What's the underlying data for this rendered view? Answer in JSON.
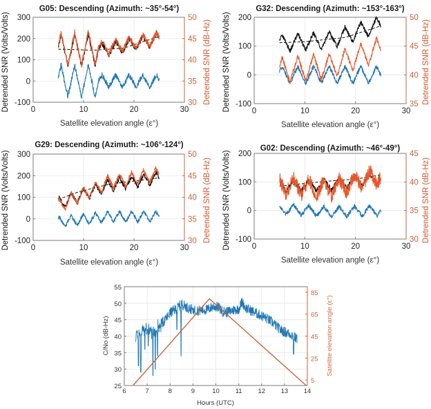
{
  "colors": {
    "blue": "#1f77b4",
    "orange": "#e8572a",
    "black": "#111111",
    "elev": "#c8653c",
    "grid": "#e6e6e6",
    "axis": "#7a7a7a",
    "right_axis": "#c8643c"
  },
  "chart_data": [
    {
      "type": "line",
      "id": "g05",
      "title": "G05: Descending (Azimuth: ~35°-54°)",
      "xlabel": "Satellite elevation angle (ε°)",
      "ylabel": "Detrended SNR (Volts/Volts)",
      "ylabel_right": "Detrended SNR (dB-Hz)",
      "xlim": [
        0,
        30
      ],
      "ylim": [
        -100,
        300
      ],
      "ylim_right": [
        30,
        50
      ],
      "xticks": [
        0,
        10,
        20,
        30
      ],
      "yticks": [
        -100,
        0,
        100,
        200,
        300
      ],
      "yticks_right": [
        30,
        35,
        40,
        45,
        50
      ],
      "grid": true,
      "x_range": [
        5,
        25
      ],
      "series": [
        {
          "name": "SNR (Volts/Volts)",
          "color": "black",
          "axis": "left",
          "trend": [
            145,
            150,
            200
          ],
          "osc_amp": 75,
          "period": 2.7,
          "phase": 0.3,
          "noise": 12,
          "damp_after": 13,
          "damp_amp": 30
        },
        {
          "name": "Trend fit",
          "color": "black",
          "axis": "left",
          "dashed": true,
          "points": [
            [
              5,
              150
            ],
            [
              12,
              145
            ],
            [
              18,
              155
            ],
            [
              25,
              210
            ]
          ]
        },
        {
          "name": "Detrended SNR (Volts/Volts)",
          "color": "blue",
          "axis": "left",
          "trend": [
            0,
            0,
            0
          ],
          "osc_amp": 75,
          "period": 2.7,
          "phase": 0.3,
          "noise": 12,
          "damp_after": 13,
          "damp_amp": 30
        },
        {
          "name": "SNR (dB-Hz)",
          "color": "orange",
          "axis": "right",
          "trend": [
            42.5,
            43,
            45
          ],
          "osc_amp": 4,
          "period": 2.7,
          "phase": 0.3,
          "noise": 0.7,
          "damp_after": 13,
          "damp_amp": 1.6
        }
      ]
    },
    {
      "type": "line",
      "id": "g32",
      "title": "G32: Descending (Azimuth: ~153°-163°)",
      "xlabel": "Satellite elevation angle (ε°)",
      "ylabel": "Detrended SNR (Volts/Volts)",
      "ylabel_right": "Detrended SNR (dB-Hz)",
      "xlim": [
        0,
        30
      ],
      "ylim": [
        -100,
        200
      ],
      "ylim_right": [
        35,
        50
      ],
      "xticks": [
        0,
        10,
        20,
        30
      ],
      "yticks": [
        -100,
        0,
        100,
        200
      ],
      "yticks_right": [
        35,
        40,
        45,
        50
      ],
      "grid": true,
      "x_range": [
        5,
        25
      ],
      "series": [
        {
          "name": "SNR (Volts/Volts)",
          "color": "black",
          "axis": "left",
          "trend": [
            110,
            120,
            175
          ],
          "osc_amp": 30,
          "period": 3.1,
          "phase": 0.5,
          "noise": 7,
          "damp_after": 99,
          "damp_amp": 30
        },
        {
          "name": "Trend fit",
          "color": "black",
          "axis": "left",
          "dashed": true,
          "points": [
            [
              5,
              112
            ],
            [
              10,
              115
            ],
            [
              18,
              130
            ],
            [
              25,
              170
            ]
          ]
        },
        {
          "name": "Detrended SNR (Volts/Volts)",
          "color": "blue",
          "axis": "left",
          "trend": [
            0,
            0,
            0
          ],
          "osc_amp": 30,
          "period": 3.1,
          "phase": 0.5,
          "noise": 7,
          "damp_after": 99,
          "damp_amp": 30
        },
        {
          "name": "SNR (dB-Hz)",
          "color": "orange",
          "axis": "right",
          "trend": [
            40.8,
            41.5,
            44.5
          ],
          "osc_amp": 2.2,
          "period": 3.1,
          "phase": 0.5,
          "noise": 0.4,
          "damp_after": 99,
          "damp_amp": 2.2
        }
      ]
    },
    {
      "type": "line",
      "id": "g29",
      "title": "G29: Descending (Azimuth: ~106°-124°)",
      "xlabel": "Satellite elevation angle (ε°)",
      "ylabel": "Detrended SNR (Volts/Volts)",
      "ylabel_right": "Detrended SNR (dB-Hz)",
      "xlim": [
        0,
        30
      ],
      "ylim": [
        -100,
        300
      ],
      "ylim_right": [
        30,
        50
      ],
      "xticks": [
        0,
        10,
        20,
        30
      ],
      "yticks": [
        -100,
        0,
        100,
        200,
        300
      ],
      "yticks_right": [
        30,
        35,
        40,
        45,
        50
      ],
      "grid": true,
      "x_range": [
        5,
        25
      ],
      "series": [
        {
          "name": "SNR (Volts/Volts)",
          "color": "black",
          "axis": "left",
          "trend": [
            70,
            155,
            190
          ],
          "osc_amp": 28,
          "period": 2.4,
          "phase": 1.2,
          "noise": 9,
          "damp_after": 99,
          "damp_amp": 28
        },
        {
          "name": "Trend fit",
          "color": "black",
          "axis": "left",
          "dashed": true,
          "points": [
            [
              5,
              90
            ],
            [
              9,
              125
            ],
            [
              15,
              160
            ],
            [
              20,
              175
            ],
            [
              25,
              190
            ]
          ]
        },
        {
          "name": "Detrended SNR (Volts/Volts)",
          "color": "blue",
          "axis": "left",
          "trend": [
            -15,
            10,
            10
          ],
          "osc_amp": 25,
          "period": 2.4,
          "phase": 1.2,
          "noise": 8,
          "damp_after": 99,
          "damp_amp": 25
        },
        {
          "name": "SNR (dB-Hz)",
          "color": "orange",
          "axis": "right",
          "trend": [
            38,
            43.5,
            45.3
          ],
          "osc_amp": 1.6,
          "period": 2.4,
          "phase": 1.2,
          "noise": 0.5,
          "damp_after": 99,
          "damp_amp": 1.6
        }
      ]
    },
    {
      "type": "line",
      "id": "g02",
      "title": "G02: Descending (Azimuth: ~46°-49°)",
      "xlabel": "Satellite elevation angle (ε°)",
      "ylabel": "Detrended SNR (Volts/Volts)",
      "ylabel_right": "Detrended SNR (dB-Hz)",
      "xlim": [
        0,
        30
      ],
      "ylim": [
        -100,
        200
      ],
      "ylim_right": [
        30,
        45
      ],
      "xticks": [
        0,
        10,
        20,
        30
      ],
      "yticks": [
        -100,
        0,
        100,
        200
      ],
      "yticks_right": [
        30,
        35,
        40,
        45
      ],
      "grid": true,
      "x_range": [
        5,
        25
      ],
      "series": [
        {
          "name": "SNR (Volts/Volts)",
          "color": "black",
          "axis": "left",
          "trend": [
            85,
            90,
            115
          ],
          "osc_amp": 20,
          "period": 3.0,
          "phase": 2.0,
          "noise": 8,
          "damp_after": 99,
          "damp_amp": 20
        },
        {
          "name": "Trend fit",
          "color": "black",
          "axis": "left",
          "dashed": true,
          "points": [
            [
              5,
              85
            ],
            [
              10,
              95
            ],
            [
              16,
              105
            ],
            [
              20,
              110
            ],
            [
              25,
              125
            ]
          ]
        },
        {
          "name": "Detrended SNR (Volts/Volts)",
          "color": "blue",
          "axis": "left",
          "trend": [
            5,
            -5,
            0
          ],
          "osc_amp": 18,
          "period": 3.0,
          "phase": 2.0,
          "noise": 7,
          "damp_after": 99,
          "damp_amp": 18
        },
        {
          "name": "SNR (dB-Hz)",
          "color": "orange",
          "axis": "right",
          "trend": [
            39.5,
            38.8,
            41
          ],
          "osc_amp": 1.5,
          "period": 3.0,
          "phase": 2.0,
          "noise": 1.2,
          "damp_after": 99,
          "damp_amp": 1.5
        }
      ]
    },
    {
      "type": "line",
      "id": "cno",
      "title": "",
      "xlabel": "Hours (UTC)",
      "ylabel": "C/No (dB-Hz)",
      "ylabel_right": "Satellite elevation angle (ε°)",
      "xlim": [
        6,
        14
      ],
      "ylim": [
        25,
        55
      ],
      "ylim_right": [
        0,
        90
      ],
      "xticks": [
        6,
        7,
        8,
        9,
        10,
        11,
        12,
        13,
        14
      ],
      "yticks": [
        25,
        30,
        35,
        40,
        45,
        50,
        55
      ],
      "yticks_right": [
        5,
        25,
        45,
        65,
        85
      ],
      "grid": true,
      "series": [
        {
          "name": "C/No",
          "color": "blue",
          "axis": "left",
          "points": [
            [
              6.5,
              40
            ],
            [
              6.8,
              42
            ],
            [
              7.0,
              42
            ],
            [
              7.3,
              41
            ],
            [
              7.5,
              43
            ],
            [
              7.8,
              45
            ],
            [
              8.0,
              47
            ],
            [
              8.3,
              48.5
            ],
            [
              8.5,
              49.8
            ],
            [
              8.8,
              48.5
            ],
            [
              9.0,
              48
            ],
            [
              9.3,
              47.8
            ],
            [
              9.6,
              48
            ],
            [
              9.9,
              49
            ],
            [
              10.1,
              48.8
            ],
            [
              10.3,
              47.5
            ],
            [
              10.5,
              47.3
            ],
            [
              10.8,
              48
            ],
            [
              11.0,
              48.2
            ],
            [
              11.15,
              50.5
            ],
            [
              11.3,
              48.5
            ],
            [
              11.6,
              47.5
            ],
            [
              11.9,
              46.5
            ],
            [
              12.2,
              45.5
            ],
            [
              12.5,
              44
            ],
            [
              12.8,
              42
            ],
            [
              13.1,
              41
            ],
            [
              13.3,
              40.5
            ],
            [
              13.55,
              39
            ]
          ],
          "dips": [
            [
              6.62,
              31
            ],
            [
              6.72,
              29
            ],
            [
              6.9,
              36
            ],
            [
              7.05,
              37
            ],
            [
              7.25,
              28
            ],
            [
              7.35,
              30
            ],
            [
              7.45,
              34
            ],
            [
              8.3,
              42
            ],
            [
              8.48,
              34
            ],
            [
              9.0,
              47
            ],
            [
              13.4,
              34.5
            ]
          ]
        },
        {
          "name": "Satellite elevation angle",
          "color": "elev",
          "axis": "right",
          "points": [
            [
              6.38,
              0
            ],
            [
              9.72,
              79
            ],
            [
              13.95,
              0
            ]
          ]
        }
      ]
    }
  ]
}
